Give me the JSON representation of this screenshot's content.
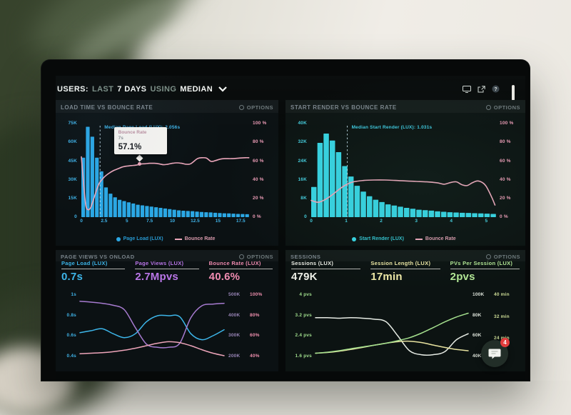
{
  "header": {
    "parts": [
      "USERS:",
      "LAST",
      "7 DAYS",
      "USING",
      "MEDIAN"
    ]
  },
  "labels": {
    "options": "OPTIONS"
  },
  "header_icons": [
    {
      "name": "monitor-icon"
    },
    {
      "name": "share-icon"
    },
    {
      "name": "help-icon",
      "glyph": "?"
    }
  ],
  "chat": {
    "badge": "4"
  },
  "panels": {
    "load_time": {
      "title": "LOAD TIME VS BOUNCE RATE"
    },
    "start_render": {
      "title": "START RENDER VS BOUNCE RATE"
    },
    "page_views": {
      "title": "PAGE VIEWS VS ONLOAD",
      "stats": [
        {
          "label": "Page Load (LUX)",
          "value": "0.7s",
          "color": "#3db6ea"
        },
        {
          "label": "Page Views (LUX)",
          "value": "2.7Mpvs",
          "color": "#b976e8"
        },
        {
          "label": "Bounce Rate (LUX)",
          "value": "40.6%",
          "color": "#f08cb1"
        }
      ]
    },
    "sessions": {
      "title": "SESSIONS",
      "stats": [
        {
          "label": "Sessions (LUX)",
          "value": "479K",
          "color": "#eceee6"
        },
        {
          "label": "Session Length (LUX)",
          "value": "17min",
          "color": "#efe9a6"
        },
        {
          "label": "PVs Per Session (LUX)",
          "value": "2pvs",
          "color": "#b2e695"
        }
      ]
    }
  },
  "chart_data": [
    {
      "type": "bar+line",
      "title": "LOAD TIME VS BOUNCE RATE",
      "x_max": 18.5,
      "x_ticks": [
        0,
        2.5,
        5,
        7.5,
        10,
        12.5,
        15,
        17.5
      ],
      "xlabel_unit": "s",
      "y_left_ticks": [
        "75K",
        "60K",
        "45K",
        "30K",
        "15K",
        "0"
      ],
      "y_left_max_k": 75,
      "y_left_color": "#3fb3e8",
      "y_right_ticks": [
        "100 %",
        "80 %",
        "60 %",
        "40 %",
        "20 %",
        "0 %"
      ],
      "y_right_color": "#ef9db8",
      "bar_color": "#2ba7e4",
      "line_color": "#eba6ba",
      "accent": "#3fb3e8",
      "median_label": "Median Page Load (LUX): 2.056s",
      "median_x": 2.056,
      "bars": {
        "step": 0.5,
        "values_k": [
          48,
          73,
          65,
          48,
          37,
          24,
          19,
          16,
          14,
          13,
          12,
          11,
          10,
          9.5,
          9,
          8.5,
          8,
          7.5,
          7,
          6.5,
          6,
          5.5,
          5.2,
          5,
          4.8,
          4.5,
          4.2,
          4,
          3.8,
          3.5,
          3.3,
          3.1,
          3,
          2.8,
          2.6,
          2.5,
          2.4
        ]
      },
      "line": {
        "name": "Bounce Rate",
        "unit": "%",
        "points": [
          [
            0,
            65
          ],
          [
            0.3,
            30
          ],
          [
            0.5,
            12
          ],
          [
            0.75,
            8
          ],
          [
            1,
            10
          ],
          [
            1.3,
            18
          ],
          [
            1.7,
            30
          ],
          [
            2,
            37
          ],
          [
            2.5,
            43
          ],
          [
            3,
            47
          ],
          [
            3.5,
            50
          ],
          [
            4,
            52
          ],
          [
            4.5,
            54
          ],
          [
            5,
            55
          ],
          [
            5.5,
            55.5
          ],
          [
            6,
            56
          ],
          [
            6.5,
            57.1
          ],
          [
            7,
            57.5
          ],
          [
            7.5,
            58
          ],
          [
            8,
            58
          ],
          [
            8.5,
            57.5
          ],
          [
            9,
            56.5
          ],
          [
            9.5,
            57
          ],
          [
            10,
            58
          ],
          [
            10.5,
            58.5
          ],
          [
            11,
            58
          ],
          [
            11.5,
            57
          ],
          [
            12,
            57.5
          ],
          [
            12.75,
            63
          ],
          [
            13.25,
            64
          ],
          [
            13.75,
            63.5
          ],
          [
            14.25,
            60
          ],
          [
            14.75,
            61
          ],
          [
            15.25,
            62.5
          ],
          [
            15.75,
            63
          ],
          [
            16.5,
            63
          ],
          [
            17.25,
            63.5
          ],
          [
            18,
            64
          ],
          [
            18.4,
            64
          ]
        ]
      },
      "legend": [
        {
          "label": "Page Load (LUX)",
          "swatch": "dot",
          "color": "#2ba7e4"
        },
        {
          "label": "Bounce Rate",
          "swatch": "line",
          "color": "#eba6ba"
        }
      ],
      "tooltip": {
        "title": "Bounce Rate",
        "x_label": "7s",
        "value": "57.1%",
        "x": 6.4,
        "pct": 57.1
      }
    },
    {
      "type": "bar+line",
      "title": "START RENDER VS BOUNCE RATE",
      "x_max": 5.3,
      "x_ticks": [
        0,
        1,
        2,
        3,
        4,
        5
      ],
      "xlabel_unit": "s",
      "y_left_ticks": [
        "40K",
        "32K",
        "24K",
        "16K",
        "8K",
        "0"
      ],
      "y_left_max_k": 40,
      "y_left_color": "#45cfe0",
      "y_right_ticks": [
        "100 %",
        "80 %",
        "60 %",
        "40 %",
        "20 %",
        "0 %"
      ],
      "y_right_color": "#ef9db8",
      "bar_color": "#37d3e2",
      "line_color": "#eba6ba",
      "accent": "#3fc9e0",
      "median_label": "Median Start Render (LUX): 1.031s",
      "median_x": 1.031,
      "bars": {
        "step": 0.175,
        "values_k": [
          13,
          32,
          36,
          33,
          28,
          22,
          17.5,
          13.5,
          11,
          9,
          7.5,
          6.5,
          5.5,
          5,
          4.5,
          4,
          3.6,
          3.2,
          3,
          2.8,
          2.5,
          2.3,
          2.1,
          2,
          1.9,
          1.8,
          1.7,
          1.6,
          1.5,
          1.4
        ]
      },
      "line": {
        "name": "Bounce Rate",
        "unit": "%",
        "points": [
          [
            0,
            18
          ],
          [
            0.2,
            16
          ],
          [
            0.4,
            19
          ],
          [
            0.6,
            24
          ],
          [
            0.8,
            30
          ],
          [
            1.0,
            35
          ],
          [
            1.2,
            38
          ],
          [
            1.5,
            39.5
          ],
          [
            1.8,
            40
          ],
          [
            2.1,
            40
          ],
          [
            2.4,
            39.5
          ],
          [
            2.7,
            39
          ],
          [
            3.0,
            38.5
          ],
          [
            3.3,
            38
          ],
          [
            3.6,
            37
          ],
          [
            3.8,
            35.5
          ],
          [
            4.0,
            37.5
          ],
          [
            4.15,
            38
          ],
          [
            4.3,
            35
          ],
          [
            4.45,
            34
          ],
          [
            4.6,
            37
          ],
          [
            4.75,
            39
          ],
          [
            4.9,
            37
          ],
          [
            5.0,
            33
          ],
          [
            5.15,
            22
          ],
          [
            5.25,
            13
          ]
        ]
      },
      "legend": [
        {
          "label": "Start Render (LUX)",
          "swatch": "dot",
          "color": "#37d3e2"
        },
        {
          "label": "Bounce Rate",
          "swatch": "line",
          "color": "#eba6ba"
        }
      ]
    },
    {
      "type": "line",
      "title": "PAGE VIEWS VS ONLOAD",
      "y_left": {
        "ticks": [
          "1s",
          "0.8s",
          "0.6s",
          "0.4s"
        ],
        "color": "#3fb3e8"
      },
      "y_right_cols": [
        {
          "ticks": [
            "500K",
            "400K",
            "300K",
            "200K"
          ],
          "color": "#9a86b8"
        },
        {
          "ticks": [
            "100%",
            "80%",
            "60%",
            "40%"
          ],
          "color": "#ef8fae"
        }
      ],
      "series": [
        {
          "name": "Page Load (LUX)",
          "unit": "s",
          "color": "#3db6ea",
          "range": [
            0.4,
            1.0
          ],
          "values": [
            0.63,
            0.65,
            0.67,
            0.62,
            0.58,
            0.62,
            0.74,
            0.8,
            0.8,
            0.79,
            0.62,
            0.56,
            0.6,
            0.66
          ]
        },
        {
          "name": "Page Views (LUX)",
          "unit": "K",
          "color": "#a77bd0",
          "range": [
            200,
            500
          ],
          "values": [
            472,
            468,
            462,
            452,
            430,
            340,
            258,
            242,
            242,
            262,
            390,
            450,
            458,
            462
          ]
        },
        {
          "name": "Bounce Rate (LUX)",
          "unit": "%",
          "color": "#eda4b9",
          "range": [
            40,
            100
          ],
          "values": [
            42,
            42.5,
            43,
            44,
            45.5,
            47.5,
            50,
            52.5,
            54,
            53,
            50,
            46,
            42.5,
            40
          ]
        }
      ]
    },
    {
      "type": "line",
      "title": "SESSIONS",
      "y_left": {
        "ticks": [
          "4 pvs",
          "3.2 pvs",
          "2.4 pvs",
          "1.6 pvs"
        ],
        "color": "#9fdc8c"
      },
      "y_right_cols": [
        {
          "ticks": [
            "100K",
            "80K",
            "60K",
            "40K"
          ],
          "color": "#dfe5dc"
        },
        {
          "ticks": [
            "40 min",
            "32 min",
            "24 min",
            ""
          ],
          "color": "#cddc96"
        }
      ],
      "series": [
        {
          "name": "Sessions (LUX)",
          "unit": "K",
          "color": "#e6ebe4",
          "range": [
            40,
            100
          ],
          "values": [
            78,
            78,
            77.5,
            78,
            77.5,
            76.5,
            74,
            60,
            45,
            41,
            41,
            44,
            56,
            62
          ]
        },
        {
          "name": "Session Length (LUX)",
          "unit": "min",
          "color": "#e8e3a0",
          "range": [
            16,
            40
          ],
          "values": [
            17,
            17.3,
            17.8,
            18.5,
            19.3,
            20.2,
            21,
            21.6,
            21.8,
            21.3,
            20.3,
            19.3,
            18.5,
            18
          ]
        },
        {
          "name": "PVs Per Session (LUX)",
          "unit": "pvs",
          "color": "#a5e08e",
          "range": [
            1.6,
            4
          ],
          "values": [
            1.7,
            1.74,
            1.8,
            1.88,
            1.95,
            2.02,
            2.1,
            2.2,
            2.32,
            2.5,
            2.72,
            2.95,
            3.15,
            3.3
          ]
        }
      ]
    }
  ]
}
